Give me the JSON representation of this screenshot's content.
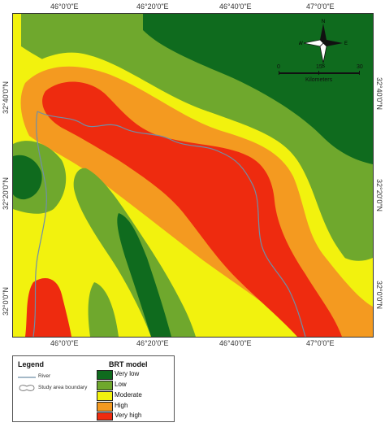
{
  "map": {
    "top_ticks": [
      "46°0'0\"E",
      "46°20'0\"E",
      "46°40'0\"E",
      "47°0'0\"E"
    ],
    "bottom_ticks": [
      "46°0'0\"E",
      "46°20'0\"E",
      "46°40'0\"E",
      "47°0'0\"E"
    ],
    "left_ticks": [
      "32°40'0\"N",
      "32°20'0\"N",
      "32°0'0\"N"
    ],
    "right_ticks": [
      "32°40'0\"N",
      "32°20'0\"N",
      "32°0'0\"N"
    ],
    "north_arrow": {
      "n": "N",
      "s": "S",
      "e": "E",
      "w": "W"
    },
    "scale": {
      "ticks": [
        "0",
        "15",
        "30"
      ],
      "unit": "Kilometers"
    }
  },
  "legend": {
    "title": "Legend",
    "river_label": "River",
    "boundary_label": "Study area boundary",
    "brt_title": "BRT model",
    "classes": [
      {
        "label": "Very low",
        "color": "#0f6b1e"
      },
      {
        "label": "Low",
        "color": "#6fa82d"
      },
      {
        "label": "Moderate",
        "color": "#f2f20e"
      },
      {
        "label": "High",
        "color": "#f49a20"
      },
      {
        "label": "Very high",
        "color": "#ee2b0f"
      }
    ],
    "river_color": "#6f8fa8"
  }
}
